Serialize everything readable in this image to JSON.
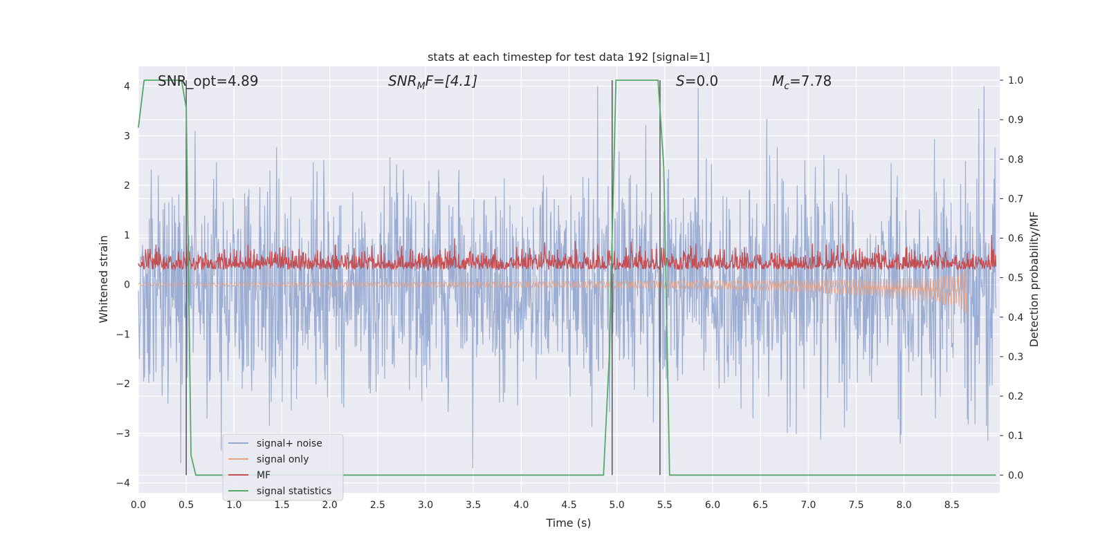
{
  "chart_data": {
    "type": "line",
    "title": "stats at each timestep for test data 192 [signal=1]",
    "xlabel": "Time (s)",
    "ylabel_left": "Whitened strain",
    "ylabel_right": "Detection probability/MF",
    "xlim": [
      0.0,
      9.0
    ],
    "ylim_left": [
      -4.2,
      4.4
    ],
    "ylim_right": [
      -0.045,
      1.035
    ],
    "x_ticks": [
      "0.0",
      "0.5",
      "1.0",
      "1.5",
      "2.0",
      "2.5",
      "3.0",
      "3.5",
      "4.0",
      "4.5",
      "5.0",
      "5.5",
      "6.0",
      "6.5",
      "7.0",
      "7.5",
      "8.0",
      "8.5"
    ],
    "y_left_ticks": [
      "4",
      "3",
      "2",
      "1",
      "0",
      "−1",
      "−2",
      "−3",
      "−4"
    ],
    "y_right_ticks": [
      "1.0",
      "0.9",
      "0.8",
      "0.7",
      "0.6",
      "0.5",
      "0.4",
      "0.3",
      "0.2",
      "0.1",
      "0.0"
    ],
    "grid": true,
    "legend_placement": "lower-left",
    "annotations": {
      "snr_opt": "SNR_opt=4.89",
      "snr_mf_base": "SNR",
      "snr_mf_sub": "M",
      "snr_mf_rest": "F=[4.1]",
      "s_base": "S",
      "s_rest": "=0.0",
      "mc_base": "M",
      "mc_sub": "c",
      "mc_rest": "=7.78"
    },
    "series": [
      {
        "name": "signal+ noise",
        "color": "#92a6cf",
        "axis": "left",
        "approx_range": [
          -3.7,
          4.0
        ]
      },
      {
        "name": "signal only",
        "color": "#e8a183",
        "axis": "left",
        "approx_envelope_end": [
          -0.6,
          0.05
        ],
        "end_time": 8.65
      },
      {
        "name": "MF",
        "color": "#c44e52",
        "axis": "left",
        "approx_range": [
          0.05,
          1.0
        ]
      },
      {
        "name": "signal statistics",
        "color": "#55a868",
        "axis": "right",
        "x": [
          0.0,
          0.06,
          0.45,
          0.5,
          0.55,
          0.6,
          4.86,
          4.92,
          4.99,
          5.43,
          5.49,
          5.55,
          8.96
        ],
        "y": [
          0.88,
          1.0,
          1.0,
          0.93,
          0.05,
          0.0,
          0.0,
          0.3,
          1.0,
          1.0,
          0.78,
          0.0,
          0.0
        ]
      }
    ],
    "vlines": [
      0.5,
      4.95,
      5.45
    ],
    "legend": [
      "signal+ noise",
      "signal only",
      "MF",
      "signal statistics"
    ]
  }
}
